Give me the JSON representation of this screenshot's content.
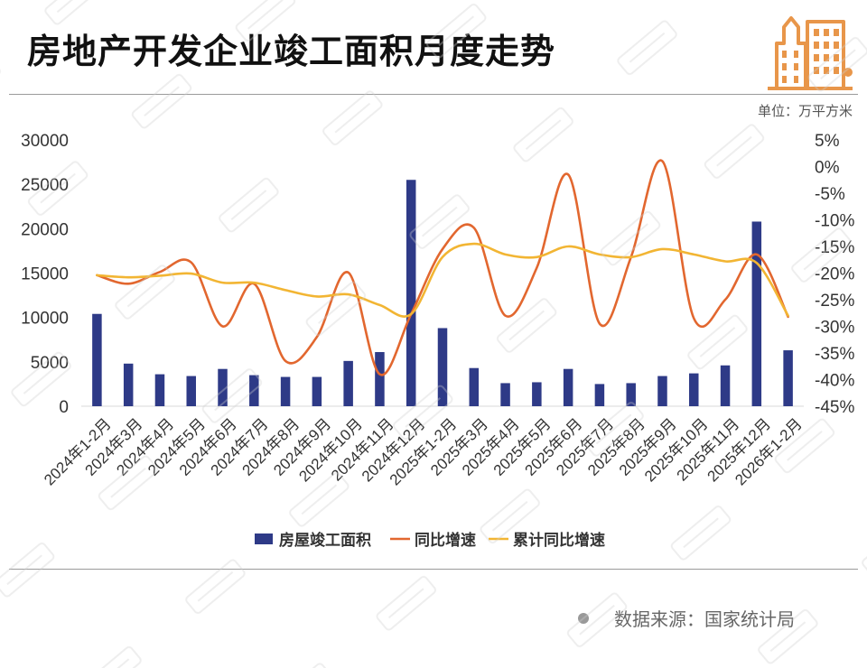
{
  "header": {
    "title": "房地产开发企业竣工面积月度走势",
    "unit": "单位：万平方米",
    "logo_icon": "buildings-icon"
  },
  "footer": {
    "source": "数据来源：国家统计局"
  },
  "colors": {
    "bar": "#2e3a87",
    "yoy_line": "#e2672f",
    "cumulative_line": "#f2b533",
    "logo": "#e8964a"
  },
  "chart_data": {
    "type": "bar+line",
    "categories": [
      "2024年1-2月",
      "2024年3月",
      "2024年4月",
      "2024年5月",
      "2024年6月",
      "2024年7月",
      "2024年8月",
      "2024年9月",
      "2024年10月",
      "2024年11月",
      "2024年12月",
      "2025年1-2月",
      "2025年3月",
      "2025年4月",
      "2025年5月",
      "2025年6月",
      "2025年7月",
      "2025年8月",
      "2025年9月",
      "2025年10月",
      "2025年11月",
      "2025年12月",
      "2026年1-2月"
    ],
    "y_left": {
      "ylim": [
        0,
        30000
      ],
      "ticks": [
        0,
        5000,
        10000,
        15000,
        20000,
        25000,
        30000
      ]
    },
    "y_right": {
      "ylim": [
        -45,
        5
      ],
      "ticks": [
        5,
        0,
        -5,
        -10,
        -15,
        -20,
        -25,
        -30,
        -35,
        -40,
        -45
      ],
      "format": "%"
    },
    "series": [
      {
        "name": "房屋竣工面积",
        "type": "bar",
        "axis": "left",
        "values": [
          10400,
          4800,
          3600,
          3400,
          4200,
          3500,
          3300,
          3300,
          5100,
          6100,
          25500,
          8800,
          4300,
          2600,
          2700,
          4200,
          2500,
          2600,
          3400,
          3700,
          4600,
          20800,
          6300
        ]
      },
      {
        "name": "同比增速",
        "type": "line",
        "axis": "right",
        "smooth": true,
        "values": [
          -20.4,
          -22.0,
          -19.8,
          -18.0,
          -30.0,
          -22.0,
          -36.5,
          -32.0,
          -19.9,
          -39.0,
          -27.7,
          -15.5,
          -11.5,
          -28.0,
          -19.0,
          -1.5,
          -29.5,
          -17.0,
          1.0,
          -28.5,
          -25.0,
          -16.5,
          -28.2
        ]
      },
      {
        "name": "累计同比增速",
        "type": "line",
        "axis": "right",
        "smooth": true,
        "values": [
          -20.4,
          -20.8,
          -20.5,
          -20.1,
          -21.8,
          -21.8,
          -23.2,
          -24.4,
          -24.0,
          -26.0,
          -27.7,
          -17.0,
          -14.5,
          -16.5,
          -17.0,
          -15.0,
          -16.5,
          -17.0,
          -15.5,
          -16.5,
          -17.8,
          -18.1,
          -28.0
        ]
      }
    ],
    "legend": "bottom"
  }
}
